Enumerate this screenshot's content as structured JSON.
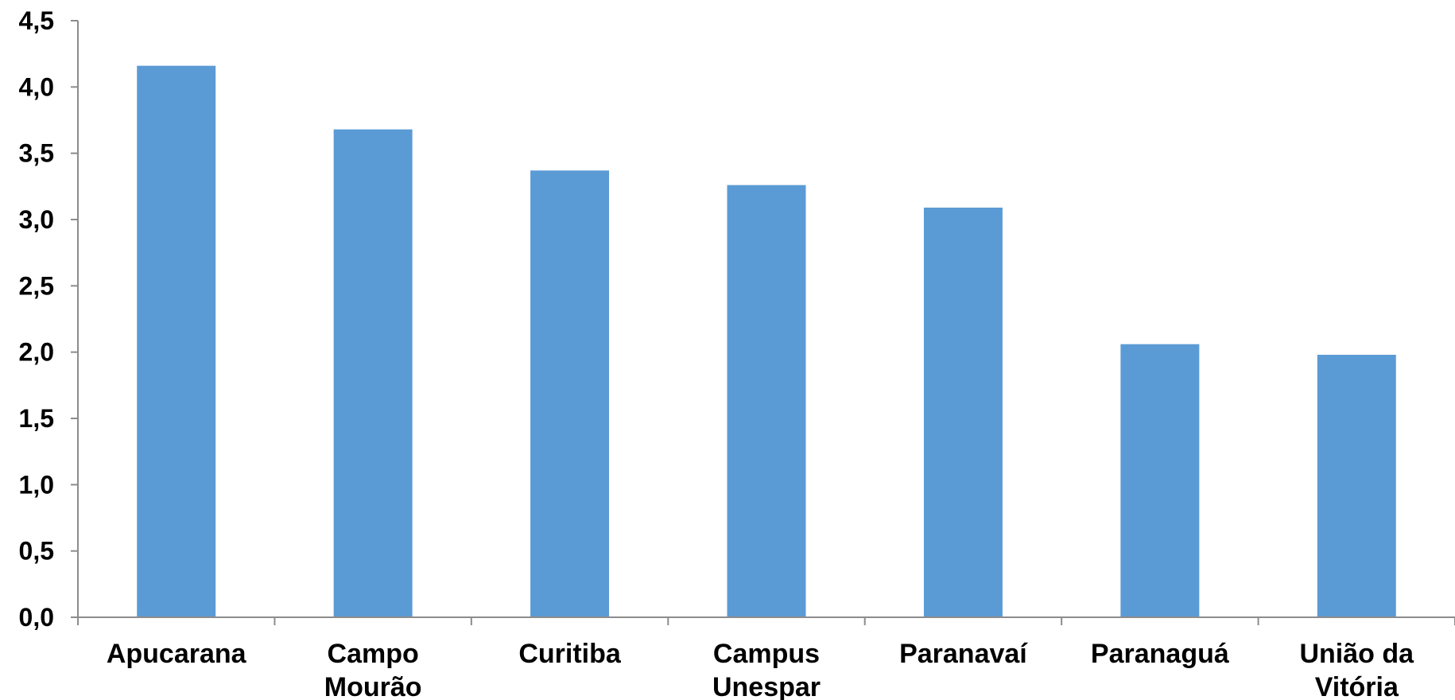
{
  "chart_data": {
    "type": "bar",
    "categories": [
      [
        "Apucarana"
      ],
      [
        "Campo",
        "Mourão"
      ],
      [
        "Curitiba"
      ],
      [
        "Campus",
        "Unespar"
      ],
      [
        "Paranavaí"
      ],
      [
        "Paranaguá"
      ],
      [
        "União da",
        "Vitória"
      ]
    ],
    "values": [
      4.16,
      3.68,
      3.37,
      3.26,
      3.09,
      2.06,
      1.98
    ],
    "ylim": [
      0,
      4.5
    ],
    "yticks": [
      "0,0",
      "0,5",
      "1,0",
      "1,5",
      "2,0",
      "2,5",
      "3,0",
      "3,5",
      "4,0",
      "4,5"
    ],
    "ytick_values": [
      0,
      0.5,
      1.0,
      1.5,
      2.0,
      2.5,
      3.0,
      3.5,
      4.0,
      4.5
    ],
    "bar_color": "#5b9bd5",
    "axis_color": "#8c8c8c",
    "grid": false,
    "title": "",
    "xlabel": "",
    "ylabel": ""
  }
}
